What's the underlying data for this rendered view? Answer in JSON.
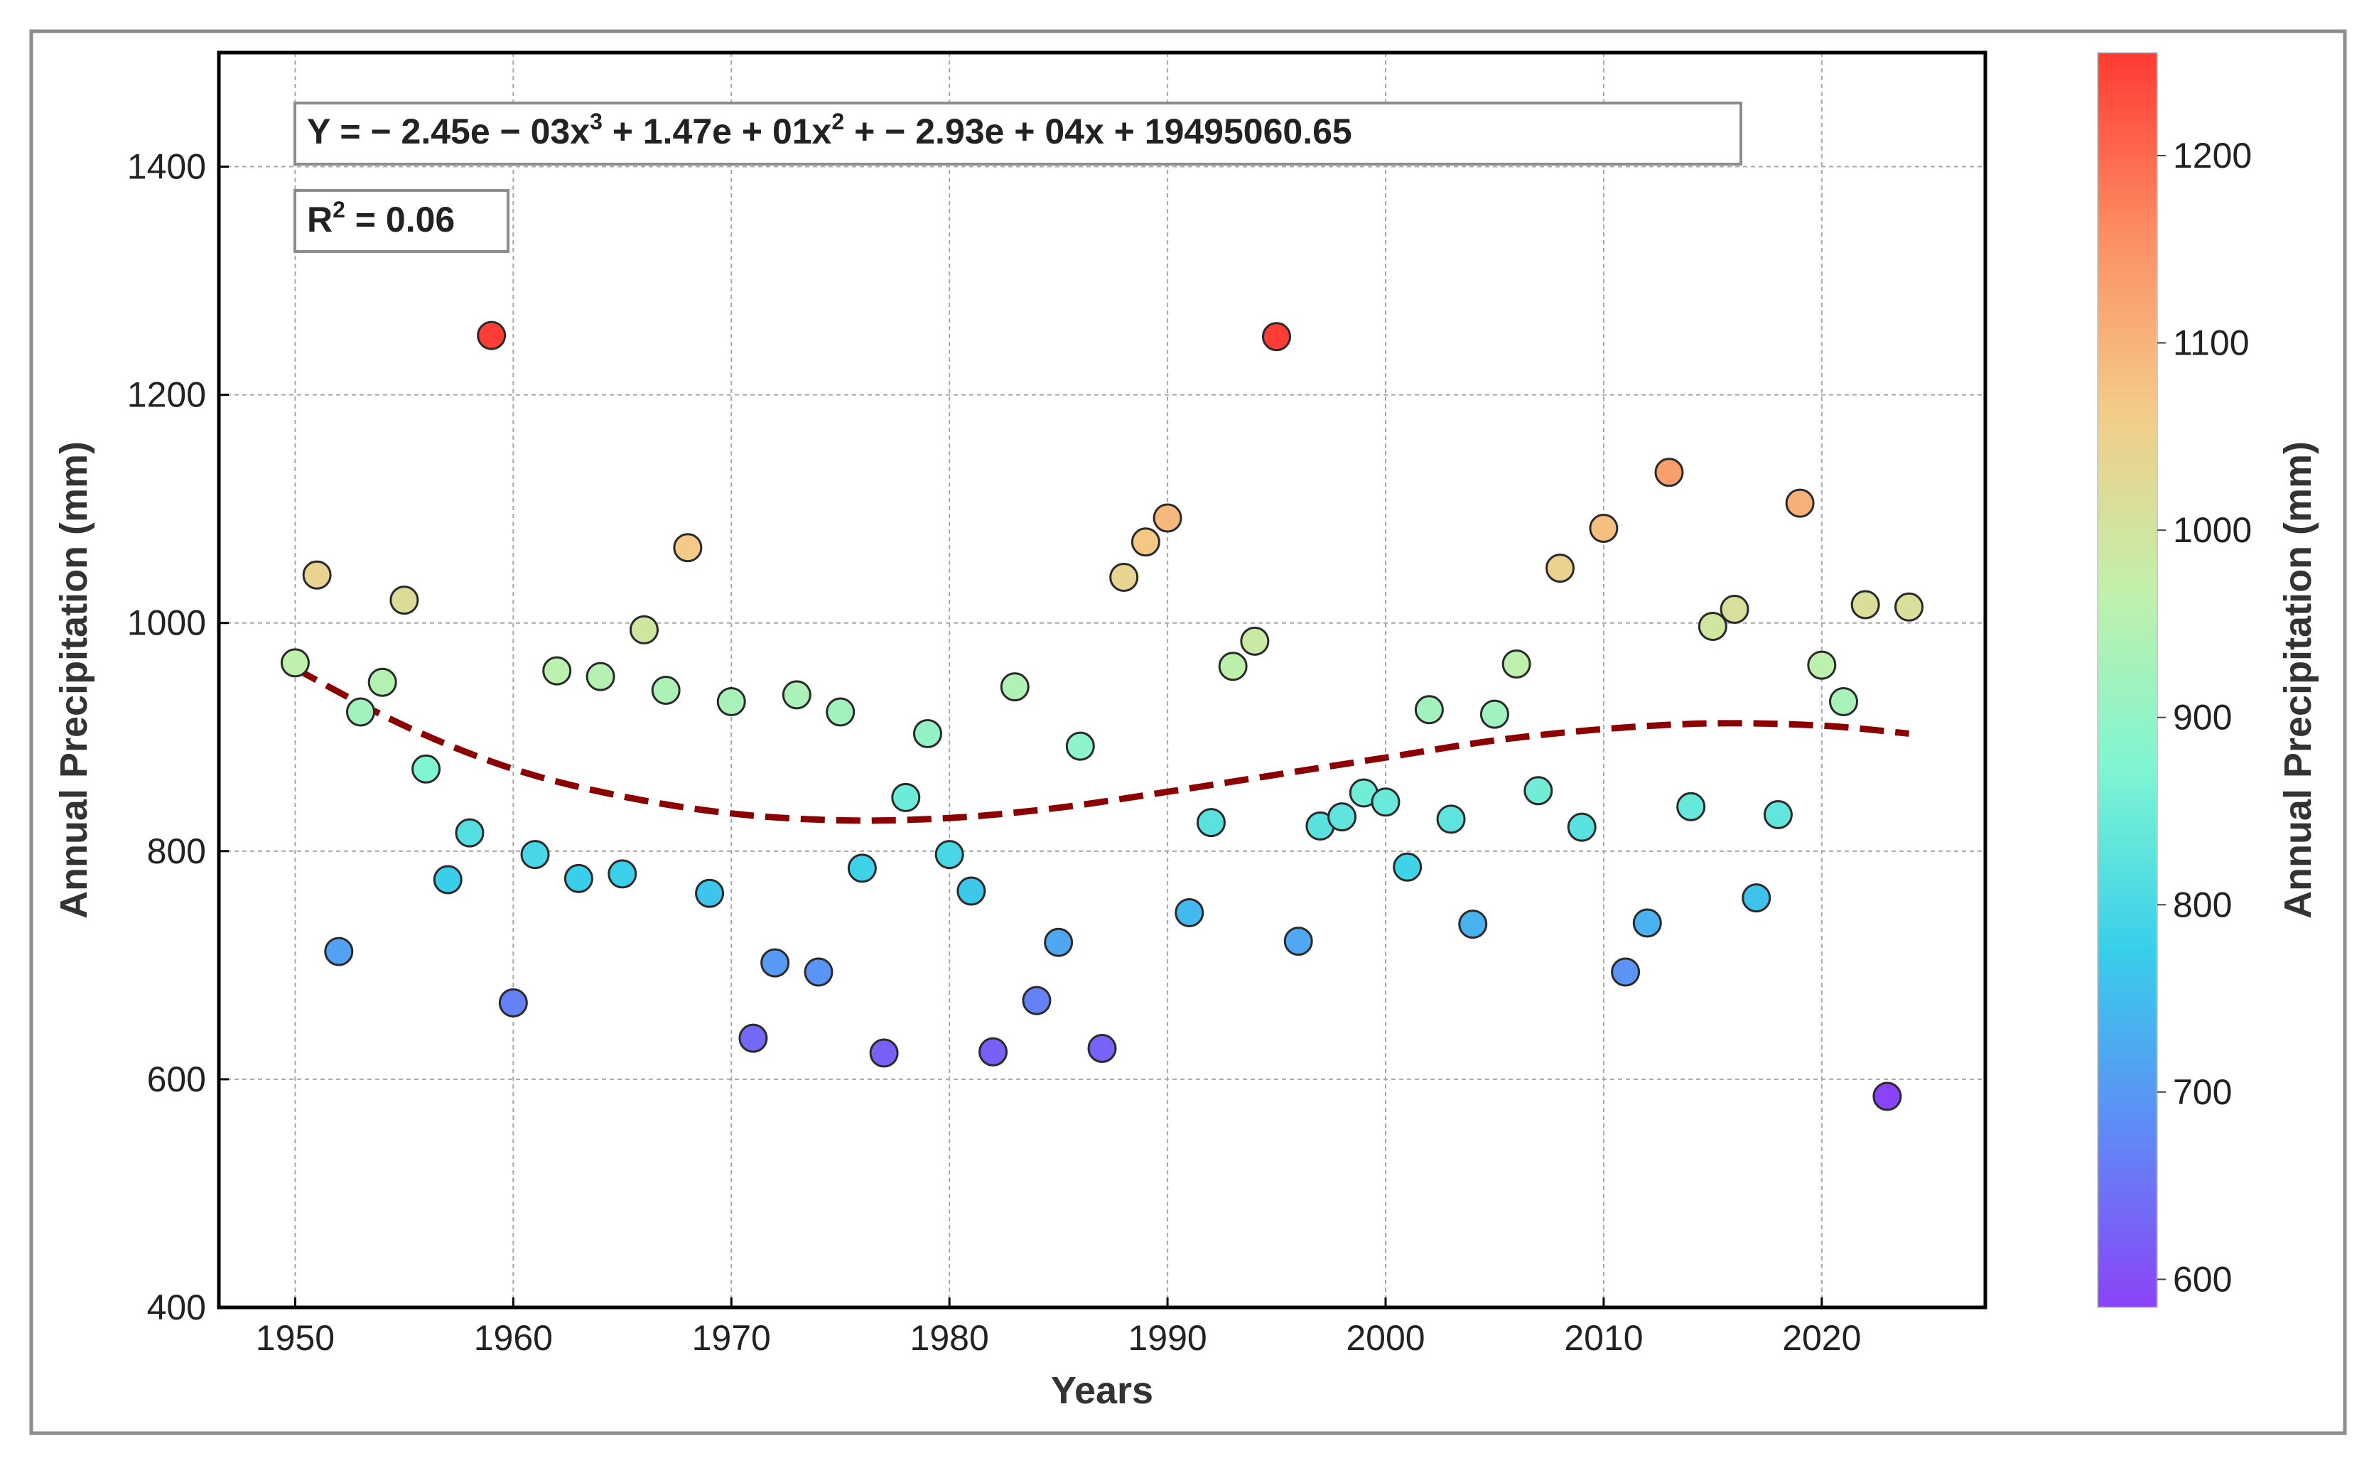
{
  "chart_data": {
    "type": "scatter",
    "xlabel": "Years",
    "ylabel": "Annual Precipitation (mm)",
    "xlim": [
      1946.5,
      2027.5
    ],
    "ylim": [
      400,
      1500
    ],
    "x_ticks": [
      "1950",
      "1960",
      "1970",
      "1980",
      "1990",
      "2000",
      "2010",
      "2020"
    ],
    "y_ticks": [
      "400",
      "600",
      "800",
      "1000",
      "1200",
      "1400"
    ],
    "grid": true,
    "equation_prefix": "Y = ",
    "equation_terms": [
      "− 2.45e − 03x",
      "3",
      " + 1.47e + 01x",
      "2",
      " + − 2.93e + 04x + 19495060.65"
    ],
    "r2_label": "R",
    "r2_sup": "2",
    "r2_value": " = 0.06",
    "trend": {
      "type": "polynomial",
      "degree": 3,
      "color": "#8b0000",
      "x": [
        1950,
        1955,
        1960,
        1965,
        1970,
        1975,
        1980,
        1985,
        1990,
        1995,
        2000,
        2005,
        2010,
        2015,
        2020,
        2024
      ],
      "y": [
        960,
        910,
        872,
        848,
        833,
        827,
        829,
        838,
        852,
        867,
        882,
        897,
        907,
        912,
        910,
        903
      ]
    },
    "colorbar": {
      "label": "Annual Precipitation (mm)",
      "colormap": "rainbow",
      "range": [
        585,
        1255
      ],
      "ticks": [
        "600",
        "700",
        "800",
        "900",
        "1000",
        "1100",
        "1200"
      ],
      "colors": [
        "#8a43f7",
        "#5f8bf6",
        "#38cfea",
        "#7ff5d2",
        "#c1f0ab",
        "#f3cc88",
        "#fc8d62",
        "#ff3a33"
      ]
    },
    "series": [
      {
        "x": [
          1950,
          1951,
          1952,
          1953,
          1954,
          1955,
          1956,
          1957,
          1958,
          1959,
          1960,
          1961,
          1962,
          1963,
          1964,
          1965,
          1966,
          1967,
          1968,
          1969,
          1970,
          1971,
          1972,
          1973,
          1974,
          1975,
          1976,
          1977,
          1978,
          1979,
          1980,
          1981,
          1982,
          1983,
          1984,
          1985,
          1986,
          1987,
          1988,
          1989,
          1990,
          1991,
          1992,
          1993,
          1994,
          1995,
          1996,
          1997,
          1998,
          1999,
          2000,
          2001,
          2002,
          2003,
          2004,
          2005,
          2006,
          2007,
          2008,
          2009,
          2010,
          2011,
          2012,
          2013,
          2014,
          2015,
          2016,
          2017,
          2018,
          2019,
          2020,
          2021,
          2022,
          2023,
          2024
        ],
        "y": [
          965,
          1042,
          712,
          922,
          948,
          1020,
          872,
          775,
          816,
          1252,
          667,
          797,
          958,
          776,
          953,
          780,
          994,
          941,
          1066,
          763,
          931,
          636,
          702,
          937,
          694,
          922,
          785,
          623,
          847,
          903,
          797,
          765,
          624,
          944,
          669,
          720,
          892,
          627,
          1040,
          1071,
          1092,
          746,
          825,
          962,
          984,
          1251,
          721,
          822,
          830,
          851,
          843,
          786,
          924,
          828,
          736,
          920,
          964,
          853,
          1048,
          821,
          1083,
          694,
          737,
          1132,
          839,
          997,
          1012,
          759,
          832,
          1105,
          963,
          931,
          1016,
          585,
          1014
        ]
      }
    ]
  }
}
